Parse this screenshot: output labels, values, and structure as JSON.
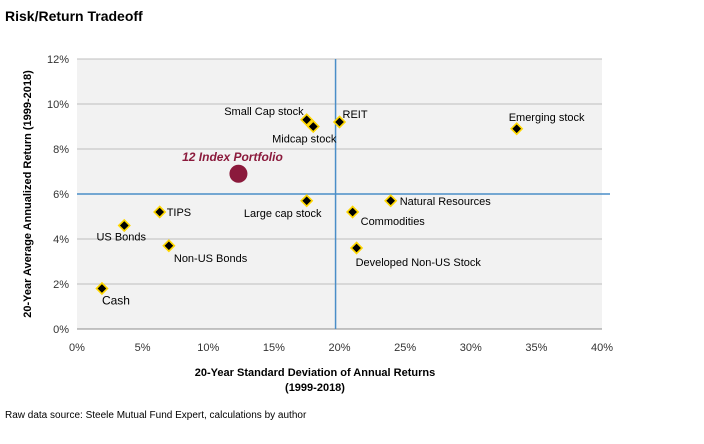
{
  "chart_data": {
    "type": "scatter",
    "title": "Risk/Return Tradeoff",
    "xlabel_lines": [
      "20-Year Standard Deviation of  Annual Returns",
      "(1999-2018)"
    ],
    "ylabel": "20-Year Average Annualized Return (1999-2018)",
    "xlim": [
      0,
      40
    ],
    "ylim": [
      0,
      12
    ],
    "x_ticks": [
      0,
      5,
      10,
      15,
      20,
      25,
      30,
      35,
      40
    ],
    "y_ticks": [
      0,
      2,
      4,
      6,
      8,
      10,
      12
    ],
    "x_tick_labels": [
      "0%",
      "5%",
      "10%",
      "15%",
      "20%",
      "25%",
      "30%",
      "35%",
      "40%"
    ],
    "y_tick_labels": [
      "0%",
      "2%",
      "4%",
      "6%",
      "8%",
      "10%",
      "12%"
    ],
    "grid": "horizontal",
    "reference_lines": {
      "x": 19.7,
      "y": 6.0,
      "color": "#4a8ec8"
    },
    "points": [
      {
        "label": "Cash",
        "x": 1.9,
        "y": 1.8
      },
      {
        "label": "US Bonds",
        "x": 3.6,
        "y": 4.6
      },
      {
        "label": "TIPS",
        "x": 6.3,
        "y": 5.2
      },
      {
        "label": "Non-US Bonds",
        "x": 7.0,
        "y": 3.7
      },
      {
        "label": "Large cap stock",
        "x": 17.5,
        "y": 5.7
      },
      {
        "label": "Small Cap stock",
        "x": 17.5,
        "y": 9.3
      },
      {
        "label": "Midcap stock",
        "x": 18.0,
        "y": 9.0
      },
      {
        "label": "REIT",
        "x": 20.0,
        "y": 9.2
      },
      {
        "label": "Commodities",
        "x": 21.0,
        "y": 5.2
      },
      {
        "label": "Developed Non-US  Stock",
        "x": 21.3,
        "y": 3.6
      },
      {
        "label": "Natural Resources",
        "x": 23.9,
        "y": 5.7
      },
      {
        "label": "Emerging stock",
        "x": 33.5,
        "y": 8.9
      }
    ],
    "highlight": {
      "label": "12 Index Portfolio",
      "x": 12.3,
      "y": 6.9,
      "color": "#8b1a3c"
    },
    "colors": {
      "marker_fill": "#000000",
      "marker_edge": "#ffd700",
      "plot_bg": "#f2f2f2",
      "grid": "#bfbfbf"
    }
  },
  "footer": {
    "source": "Raw data source:  Steele Mutual Fund Expert, calculations by author"
  }
}
